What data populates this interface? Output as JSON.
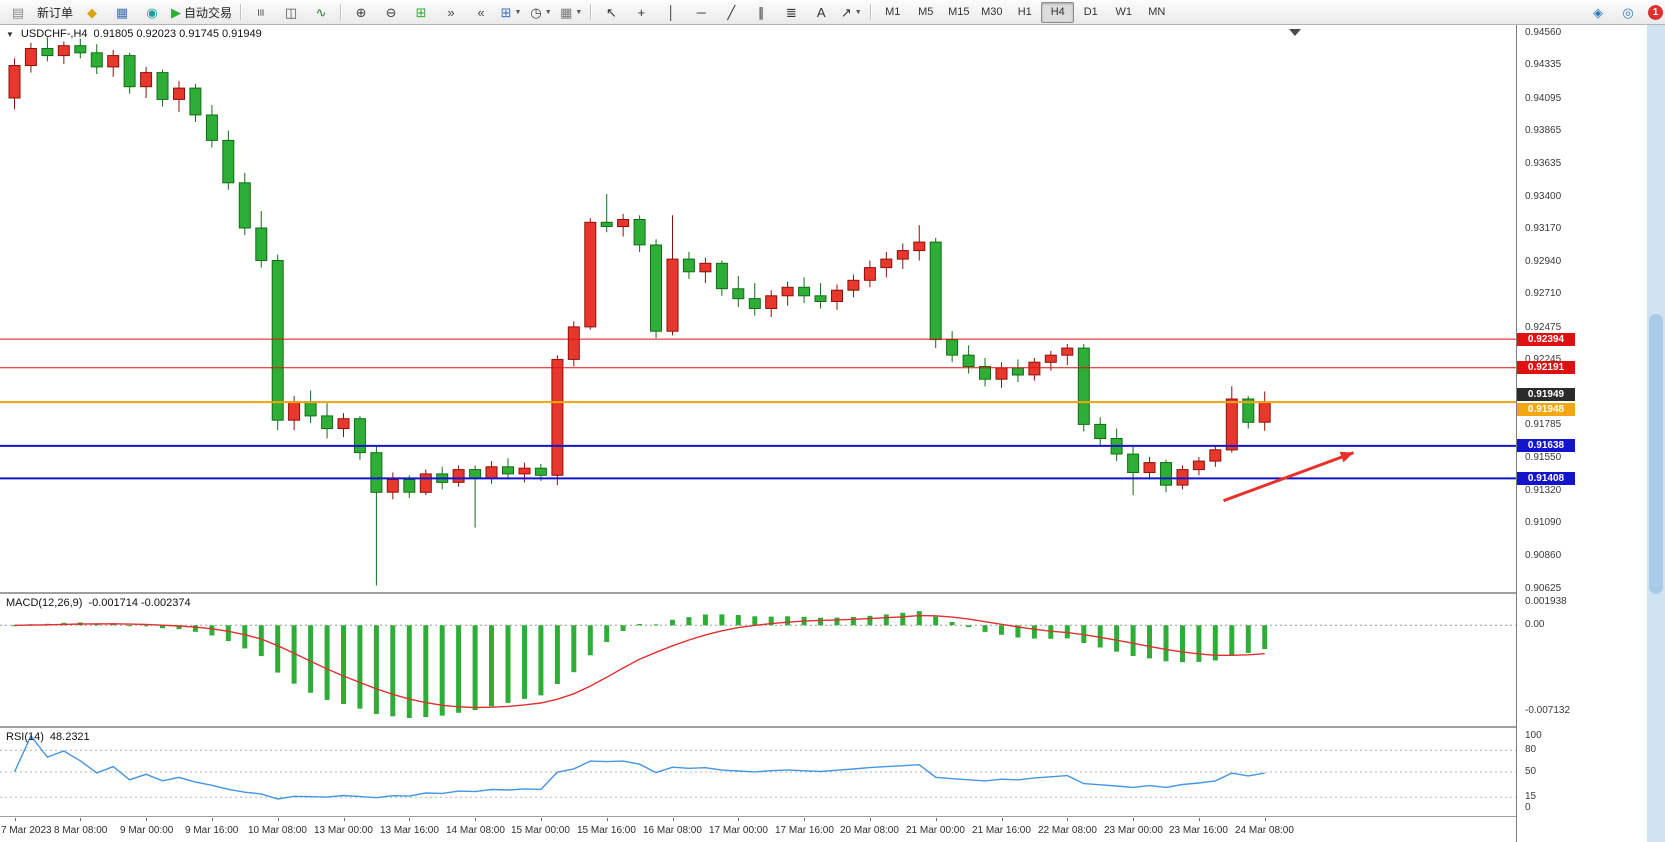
{
  "toolbar": {
    "timeframes": [
      "M1",
      "M5",
      "M15",
      "M30",
      "H1",
      "H4",
      "D1",
      "W1",
      "MN"
    ],
    "active_timeframe": "H4",
    "notification_count": "1",
    "items": [
      {
        "type": "icon",
        "name": "terminal-icon",
        "glyph": "▤",
        "color": "#8a8a8a"
      },
      {
        "type": "btn",
        "name": "new-order-button",
        "label": "新订单"
      },
      {
        "type": "icon",
        "name": "symbols-icon",
        "glyph": "◆",
        "color": "#d9a514"
      },
      {
        "type": "icon",
        "name": "data-window-icon",
        "glyph": "▦",
        "color": "#3f6fbf"
      },
      {
        "type": "icon",
        "name": "navigator-icon",
        "glyph": "◉",
        "color": "#1f9e9e"
      },
      {
        "type": "btn",
        "name": "autotrading-button",
        "label": "自动交易",
        "glyph": "▶",
        "color": "#2fae37"
      },
      {
        "type": "sep"
      },
      {
        "type": "icon",
        "name": "bar-chart-icon",
        "glyph": "≡",
        "rot": true,
        "color": "#555555"
      },
      {
        "type": "icon",
        "name": "candlestick-chart-icon",
        "glyph": "◫",
        "color": "#555555"
      },
      {
        "type": "icon",
        "name": "line-chart-icon",
        "glyph": "∿",
        "color": "#2e7f2e"
      },
      {
        "type": "sep"
      },
      {
        "type": "icon",
        "name": "zoom-in-icon",
        "glyph": "⊕",
        "color": "#444444"
      },
      {
        "type": "icon",
        "name": "zoom-out-icon",
        "glyph": "⊖",
        "color": "#444444"
      },
      {
        "type": "icon",
        "name": "tile-windows-icon",
        "glyph": "⊞",
        "color": "#2fae37"
      },
      {
        "type": "icon",
        "name": "auto-scroll-icon",
        "glyph": "»",
        "color": "#444444"
      },
      {
        "type": "icon",
        "name": "chart-shift-icon",
        "glyph": "«",
        "color": "#444444"
      },
      {
        "type": "icon",
        "name": "new-chart-dropdown",
        "glyph": "⊞",
        "color": "#3f6fbf",
        "caret": true
      },
      {
        "type": "icon",
        "name": "profiles-dropdown",
        "glyph": "◷",
        "color": "#444444",
        "caret": true
      },
      {
        "type": "icon",
        "name": "templates-dropdown",
        "glyph": "▦",
        "color": "#777777",
        "caret": true
      },
      {
        "type": "sep"
      },
      {
        "type": "icon",
        "name": "cursor-icon",
        "glyph": "↖",
        "color": "#333333"
      },
      {
        "type": "icon",
        "name": "crosshair-icon",
        "glyph": "+",
        "color": "#333333"
      },
      {
        "type": "icon",
        "name": "vertical-line-icon",
        "glyph": "│",
        "color": "#333333"
      },
      {
        "type": "icon",
        "name": "horizontal-line-icon",
        "glyph": "─",
        "color": "#333333"
      },
      {
        "type": "icon",
        "name": "trendline-icon",
        "glyph": "╱",
        "color": "#333333"
      },
      {
        "type": "icon",
        "name": "channel-icon",
        "glyph": "∥",
        "color": "#333333"
      },
      {
        "type": "icon",
        "name": "fibonacci-icon",
        "glyph": "≣",
        "color": "#333333"
      },
      {
        "type": "icon",
        "name": "text-icon",
        "glyph": "A",
        "color": "#333333"
      },
      {
        "type": "icon",
        "name": "arrows-icon",
        "glyph": "↗",
        "color": "#333333",
        "caret": true
      },
      {
        "type": "sep"
      },
      {
        "type": "timeframes"
      },
      {
        "type": "spacer"
      },
      {
        "type": "icon",
        "name": "community-icon",
        "glyph": "◈",
        "color": "#2d7fc0"
      },
      {
        "type": "icon",
        "name": "alerts-icon",
        "glyph": "◎",
        "color": "#2d7fc0"
      },
      {
        "type": "badge"
      }
    ]
  },
  "chart": {
    "symbol_label": "USDCHF-,H4",
    "ohlc_label": "0.91805 0.92023 0.91745 0.91949",
    "price_axis_labels": [
      "0.94560",
      "0.94335",
      "0.94095",
      "0.93865",
      "0.93635",
      "0.93400",
      "0.93170",
      "0.92940",
      "0.92710",
      "0.92475",
      "0.92245",
      "0.92015",
      "0.91785",
      "0.91550",
      "0.91320",
      "0.91090",
      "0.90860",
      "0.90625"
    ],
    "time_axis_labels": [
      "7 Mar 2023",
      "8 Mar 08:00",
      "9 Mar 00:00",
      "9 Mar 16:00",
      "10 Mar 08:00",
      "13 Mar 00:00",
      "13 Mar 16:00",
      "14 Mar 08:00",
      "15 Mar 00:00",
      "15 Mar 16:00",
      "16 Mar 08:00",
      "17 Mar 00:00",
      "17 Mar 16:00",
      "20 Mar 08:00",
      "21 Mar 00:00",
      "21 Mar 16:00",
      "22 Mar 08:00",
      "23 Mar 00:00",
      "23 Mar 16:00",
      "24 Mar 08:00"
    ],
    "price_lines": [
      {
        "price": 0.92394,
        "label": "0.92394",
        "color": "#e01010",
        "width": 1,
        "label_offset": 0
      },
      {
        "price": 0.92191,
        "label": "0.92191",
        "color": "#e01010",
        "width": 1,
        "label_offset": 0
      },
      {
        "price": 0.91949,
        "label": "0.91949",
        "color": "#2b2b2b",
        "width": 1,
        "label_offset": -7
      },
      {
        "price": 0.91948,
        "label": "0.91948",
        "color": "#f2a60f",
        "width": 2,
        "label_offset": 7
      },
      {
        "price": 0.91638,
        "label": "0.91638",
        "color": "#1414cc",
        "width": 2,
        "label_offset": 0
      },
      {
        "price": 0.91408,
        "label": "0.91408",
        "color": "#1414cc",
        "width": 2,
        "label_offset": 0
      }
    ],
    "arrow": {
      "from": {
        "index": 73.5,
        "price": 0.9125
      },
      "to": {
        "index": 81.4,
        "price": 0.9159
      },
      "color": "#e8312a"
    }
  },
  "chart_data": {
    "type": "candlestick",
    "symbol": "USDCHF-",
    "timeframe": "H4",
    "price_axis": {
      "min": 0.90625,
      "max": 0.9456
    },
    "colors": {
      "bull": "#e8372d",
      "bull_stroke": "#8f1007",
      "bear": "#2fae37",
      "bear_stroke": "#0f6e14",
      "macd_histogram": "#2fae37",
      "macd_signal": "#e03030",
      "rsi_line": "#4596e0"
    },
    "candles": [
      [
        0.941,
        0.9438,
        0.9402,
        0.9433
      ],
      [
        0.9433,
        0.9449,
        0.9428,
        0.9445
      ],
      [
        0.9445,
        0.9453,
        0.9436,
        0.944
      ],
      [
        0.944,
        0.945,
        0.9434,
        0.9447
      ],
      [
        0.9447,
        0.9452,
        0.9438,
        0.9442
      ],
      [
        0.9442,
        0.9448,
        0.9427,
        0.9432
      ],
      [
        0.9432,
        0.9444,
        0.9425,
        0.944
      ],
      [
        0.944,
        0.9442,
        0.9413,
        0.9418
      ],
      [
        0.9418,
        0.9432,
        0.941,
        0.9428
      ],
      [
        0.9428,
        0.943,
        0.9404,
        0.9409
      ],
      [
        0.9409,
        0.9422,
        0.94,
        0.9417
      ],
      [
        0.9417,
        0.942,
        0.9393,
        0.9398
      ],
      [
        0.9398,
        0.9405,
        0.9375,
        0.938
      ],
      [
        0.938,
        0.9387,
        0.9345,
        0.935
      ],
      [
        0.935,
        0.9357,
        0.9313,
        0.9318
      ],
      [
        0.9318,
        0.933,
        0.929,
        0.9295
      ],
      [
        0.9295,
        0.9299,
        0.9175,
        0.9182
      ],
      [
        0.9182,
        0.9199,
        0.9175,
        0.9195
      ],
      [
        0.9195,
        0.9203,
        0.918,
        0.9185
      ],
      [
        0.9185,
        0.9194,
        0.9169,
        0.9176
      ],
      [
        0.9176,
        0.9187,
        0.917,
        0.9183
      ],
      [
        0.9183,
        0.9185,
        0.9154,
        0.9159
      ],
      [
        0.9159,
        0.9164,
        0.9065,
        0.9131
      ],
      [
        0.9131,
        0.9145,
        0.9126,
        0.914
      ],
      [
        0.914,
        0.9143,
        0.9127,
        0.9131
      ],
      [
        0.9131,
        0.9147,
        0.9129,
        0.9144
      ],
      [
        0.9144,
        0.9149,
        0.9133,
        0.9138
      ],
      [
        0.9138,
        0.915,
        0.9135,
        0.9147
      ],
      [
        0.9147,
        0.915,
        0.9106,
        0.9141
      ],
      [
        0.9141,
        0.9153,
        0.9137,
        0.9149
      ],
      [
        0.9149,
        0.9155,
        0.914,
        0.9144
      ],
      [
        0.9144,
        0.9152,
        0.9138,
        0.9148
      ],
      [
        0.9148,
        0.9151,
        0.9139,
        0.9143
      ],
      [
        0.9143,
        0.9228,
        0.9136,
        0.9225
      ],
      [
        0.9225,
        0.9252,
        0.922,
        0.9248
      ],
      [
        0.9248,
        0.9325,
        0.9246,
        0.9322
      ],
      [
        0.9322,
        0.9342,
        0.9315,
        0.9319
      ],
      [
        0.9319,
        0.9328,
        0.9312,
        0.9324
      ],
      [
        0.9324,
        0.9327,
        0.9301,
        0.9306
      ],
      [
        0.9306,
        0.931,
        0.924,
        0.9245
      ],
      [
        0.9245,
        0.9327,
        0.9242,
        0.9296
      ],
      [
        0.9296,
        0.9301,
        0.9282,
        0.9287
      ],
      [
        0.9287,
        0.9297,
        0.9279,
        0.9293
      ],
      [
        0.9293,
        0.9295,
        0.927,
        0.9275
      ],
      [
        0.9275,
        0.9284,
        0.9262,
        0.9268
      ],
      [
        0.9268,
        0.9279,
        0.9256,
        0.9261
      ],
      [
        0.9261,
        0.9274,
        0.9255,
        0.927
      ],
      [
        0.927,
        0.928,
        0.9263,
        0.9276
      ],
      [
        0.9276,
        0.9283,
        0.9265,
        0.927
      ],
      [
        0.927,
        0.9279,
        0.9261,
        0.9266
      ],
      [
        0.9266,
        0.9278,
        0.926,
        0.9274
      ],
      [
        0.9274,
        0.9285,
        0.9269,
        0.9281
      ],
      [
        0.9281,
        0.9295,
        0.9276,
        0.929
      ],
      [
        0.929,
        0.9301,
        0.9283,
        0.9296
      ],
      [
        0.9296,
        0.9307,
        0.9289,
        0.9302
      ],
      [
        0.9302,
        0.932,
        0.9295,
        0.9308
      ],
      [
        0.9308,
        0.9311,
        0.9233,
        0.9239
      ],
      [
        0.9239,
        0.9245,
        0.9223,
        0.9228
      ],
      [
        0.9228,
        0.9235,
        0.9215,
        0.922
      ],
      [
        0.922,
        0.9226,
        0.9206,
        0.9211
      ],
      [
        0.9211,
        0.9223,
        0.9205,
        0.9219
      ],
      [
        0.9219,
        0.9225,
        0.9209,
        0.9214
      ],
      [
        0.9214,
        0.9226,
        0.921,
        0.9223
      ],
      [
        0.9223,
        0.9231,
        0.9217,
        0.9228
      ],
      [
        0.9228,
        0.9236,
        0.9221,
        0.9233
      ],
      [
        0.9233,
        0.9236,
        0.9174,
        0.9179
      ],
      [
        0.9179,
        0.9184,
        0.9164,
        0.9169
      ],
      [
        0.9169,
        0.9176,
        0.9153,
        0.9158
      ],
      [
        0.9158,
        0.9163,
        0.9129,
        0.9145
      ],
      [
        0.9145,
        0.9156,
        0.914,
        0.9152
      ],
      [
        0.9152,
        0.9154,
        0.9131,
        0.9136
      ],
      [
        0.9136,
        0.915,
        0.9133,
        0.9147
      ],
      [
        0.9147,
        0.9156,
        0.9143,
        0.9153
      ],
      [
        0.9153,
        0.9164,
        0.9149,
        0.9161
      ],
      [
        0.9161,
        0.9206,
        0.9159,
        0.9197
      ],
      [
        0.9197,
        0.9199,
        0.9176,
        0.91805
      ],
      [
        0.91805,
        0.92023,
        0.91745,
        0.91949
      ]
    ],
    "macd": {
      "title": "MACD(12,26,9)",
      "current_values": "-0.001714 -0.002374",
      "params": [
        12,
        26,
        9
      ],
      "axis_values": [
        0.001938,
        0,
        -0.007132
      ],
      "axis_labels": [
        "0.001938",
        "0.00",
        "-0.007132"
      ]
    },
    "rsi": {
      "title": "RSI(14)",
      "current_value": "48.2321",
      "period": 14,
      "axis_values": [
        100,
        80,
        50,
        15,
        0
      ],
      "axis_labels": [
        "100",
        "80",
        "50",
        "15",
        "0"
      ],
      "level_lines": [
        80,
        50,
        15
      ]
    }
  }
}
